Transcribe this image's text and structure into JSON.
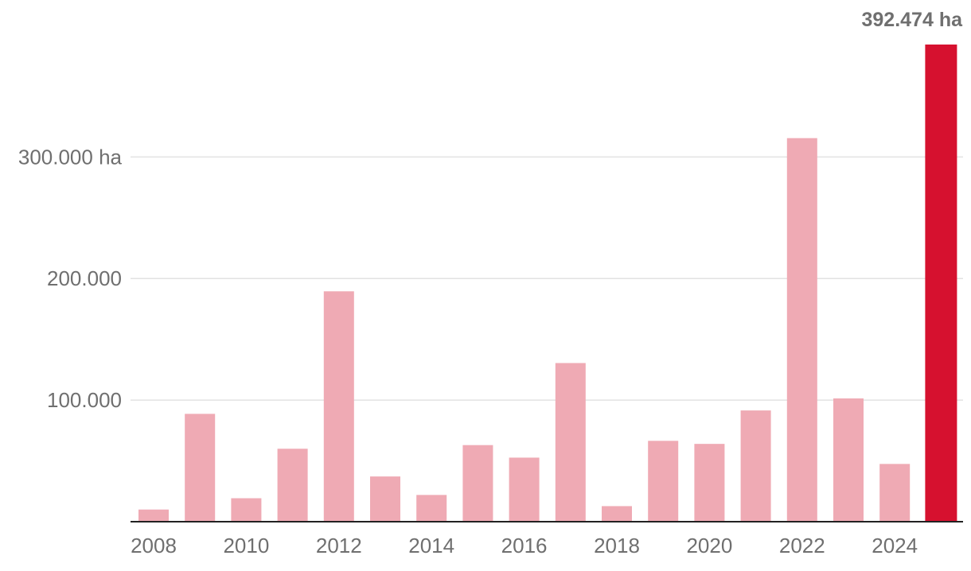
{
  "chart_data": {
    "type": "bar",
    "categories": [
      "2008",
      "2009",
      "2010",
      "2011",
      "2012",
      "2013",
      "2014",
      "2015",
      "2016",
      "2017",
      "2018",
      "2019",
      "2020",
      "2021",
      "2022",
      "2023",
      "2024",
      "2025"
    ],
    "values": [
      10000,
      88700,
      19300,
      60000,
      189500,
      37200,
      22000,
      63000,
      52700,
      130500,
      12800,
      66500,
      64000,
      91500,
      315500,
      101400,
      47500,
      392474
    ],
    "ylim": [
      0,
      392474
    ],
    "yticks": [
      {
        "value": 100000,
        "label": "100.000"
      },
      {
        "value": 200000,
        "label": "200.000"
      },
      {
        "value": 300000,
        "label": "300.000 ha"
      }
    ],
    "xtick_labels": [
      "2008",
      "2010",
      "2012",
      "2014",
      "2016",
      "2018",
      "2020",
      "2022",
      "2024"
    ],
    "highlight": {
      "category": "2025",
      "label": "392.474 ha"
    },
    "colors": {
      "bar": "#efaab4",
      "highlight": "#d6112f"
    },
    "grid": true
  }
}
